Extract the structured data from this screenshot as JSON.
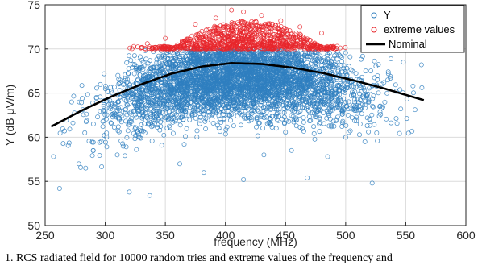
{
  "chart_data": {
    "type": "scatter",
    "title": "",
    "xlabel": "frequency (MHz)",
    "ylabel": "Y (dB μV/m)",
    "xlim": [
      250,
      600
    ],
    "ylim": [
      50,
      75
    ],
    "xticks": [
      250,
      300,
      350,
      400,
      450,
      500,
      550,
      600
    ],
    "yticks": [
      50,
      55,
      60,
      65,
      70,
      75
    ],
    "grid": true,
    "legend_position": "top-right",
    "extreme_threshold": 70,
    "series": [
      {
        "name": "Y",
        "kind": "scatter",
        "marker": "open-circle",
        "color": "#2f7fbf",
        "cloud": {
          "x_center": 410,
          "x_spread": 50,
          "x_min": 255,
          "x_max": 565,
          "y_spread": 2.3,
          "count": 4200,
          "y_max": 70
        },
        "outliers": [
          [
            257,
            57.8
          ],
          [
            262,
            54.2
          ],
          [
            265,
            59.3
          ],
          [
            272,
            64.0
          ],
          [
            278,
            57.0
          ],
          [
            283,
            60.5
          ],
          [
            290,
            58.5
          ],
          [
            298,
            61.2
          ],
          [
            310,
            58.0
          ],
          [
            320,
            53.8
          ],
          [
            326,
            58.6
          ],
          [
            337,
            53.4
          ],
          [
            347,
            59.1
          ],
          [
            362,
            57.0
          ],
          [
            382,
            56.0
          ],
          [
            415,
            55.2
          ],
          [
            432,
            58.0
          ],
          [
            455,
            58.5
          ],
          [
            468,
            55.4
          ],
          [
            485,
            57.8
          ],
          [
            500,
            60.0
          ],
          [
            512,
            61.5
          ],
          [
            522,
            54.8
          ],
          [
            528,
            62.4
          ],
          [
            535,
            66.5
          ],
          [
            542,
            65.2
          ],
          [
            548,
            68.5
          ],
          [
            556,
            65.8
          ],
          [
            563,
            68.2
          ]
        ]
      },
      {
        "name": "extreme values",
        "kind": "scatter",
        "marker": "open-circle",
        "color": "#e8262b",
        "cloud": {
          "x_center": 418,
          "x_spread": 38,
          "x_min": 320,
          "x_max": 500,
          "y_min": 70,
          "count": 900
        },
        "outliers": [
          [
            405,
            74.4
          ],
          [
            415,
            74.2
          ],
          [
            430,
            73.8
          ],
          [
            392,
            73.5
          ],
          [
            446,
            73.2
          ],
          [
            375,
            72.8
          ],
          [
            462,
            72.5
          ],
          [
            480,
            71.8
          ],
          [
            350,
            71.2
          ],
          [
            335,
            70.6
          ]
        ]
      },
      {
        "name": "Nominal",
        "kind": "line",
        "color": "#000000",
        "x": [
          255,
          280,
          305,
          330,
          355,
          380,
          405,
          430,
          455,
          480,
          505,
          530,
          565
        ],
        "y": [
          61.2,
          63.0,
          64.6,
          66.0,
          67.2,
          68.0,
          68.4,
          68.3,
          67.9,
          67.3,
          66.5,
          65.6,
          64.2
        ]
      }
    ]
  },
  "caption": "1.  RCS radiated field for 10000 random tries and extreme values of the frequency and"
}
